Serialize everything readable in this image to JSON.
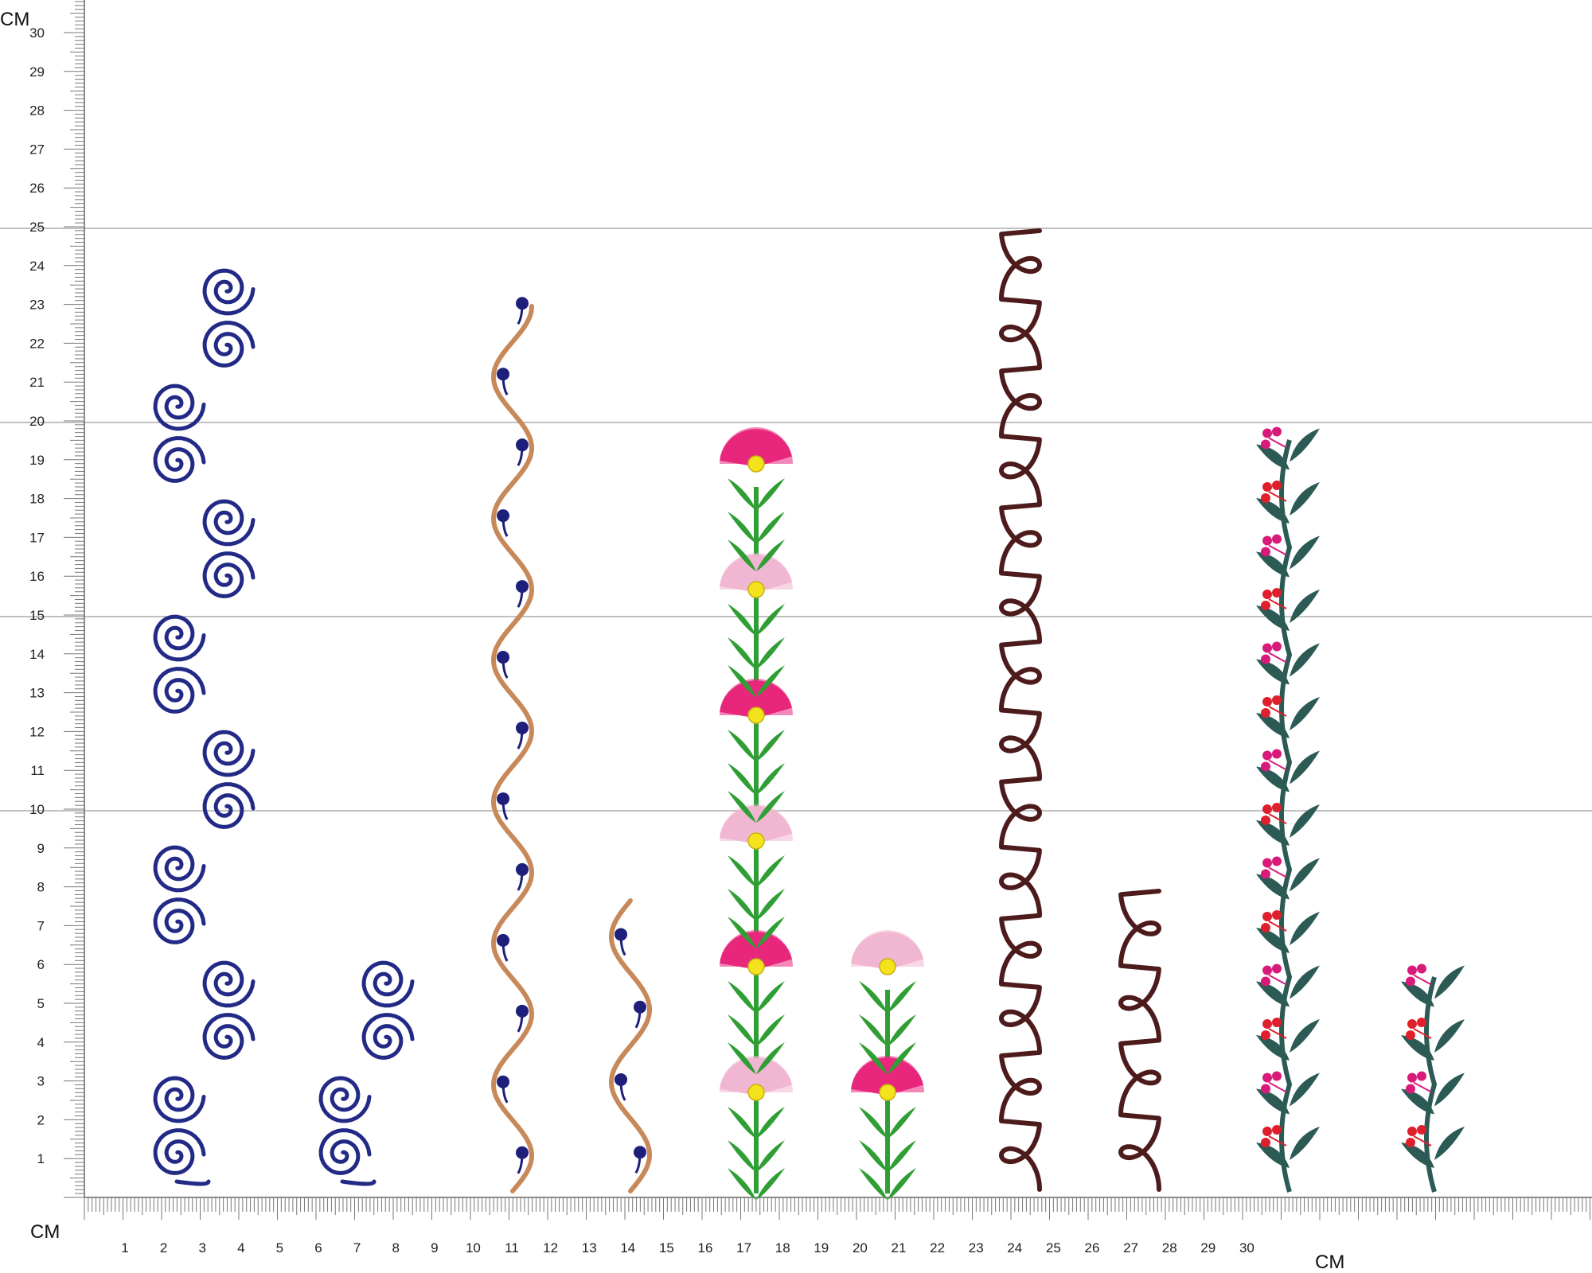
{
  "ruler": {
    "unit_label_top": "CM",
    "unit_label_bottom_left": "CM",
    "unit_label_bottom_right": "CM",
    "vertical_numbers": [
      "1",
      "2",
      "3",
      "4",
      "5",
      "6",
      "7",
      "8",
      "9",
      "10",
      "11",
      "12",
      "13",
      "14",
      "15",
      "16",
      "17",
      "18",
      "19",
      "20",
      "21",
      "22",
      "23",
      "24",
      "25",
      "26",
      "27",
      "28",
      "29",
      "30"
    ],
    "horizontal_numbers": [
      "1",
      "2",
      "3",
      "4",
      "5",
      "6",
      "7",
      "8",
      "9",
      "10",
      "11",
      "12",
      "13",
      "14",
      "15",
      "16",
      "17",
      "18",
      "19",
      "20",
      "21",
      "22",
      "23",
      "24",
      "25",
      "26",
      "27",
      "28",
      "29",
      "30"
    ],
    "guide_lines_at_cm": [
      10,
      15,
      20,
      25
    ]
  },
  "designs": [
    {
      "id": "navy-spiral-tall",
      "kind": "spiral-chain",
      "color": "#232a86"
    },
    {
      "id": "navy-spiral-short",
      "kind": "spiral-chain",
      "color": "#232a86"
    },
    {
      "id": "tan-wave-tall",
      "kind": "wave-vine",
      "color": "#c7895a",
      "bud_color": "#1d1f7a"
    },
    {
      "id": "tan-wave-short",
      "kind": "wave-vine",
      "color": "#c7895a",
      "bud_color": "#1d1f7a"
    },
    {
      "id": "flower-stack-tall",
      "kind": "fan-flower-stack",
      "colors": [
        "#e8267c",
        "#f0b6d2",
        "#2f9e34",
        "#f3e21c"
      ]
    },
    {
      "id": "flower-stack-short",
      "kind": "fan-flower-stack",
      "colors": [
        "#f0b6d2",
        "#e8267c",
        "#2f9e34",
        "#f3e21c"
      ]
    },
    {
      "id": "maroon-loop-tall",
      "kind": "loop-chain",
      "color": "#4d1b1b"
    },
    {
      "id": "maroon-loop-short",
      "kind": "loop-chain",
      "color": "#4d1b1b"
    },
    {
      "id": "teal-berry-vine-tall",
      "kind": "leaf-berry-vine",
      "colors": [
        "#2c5a55",
        "#e01f2c",
        "#d81b7a"
      ]
    },
    {
      "id": "teal-berry-vine-short",
      "kind": "leaf-berry-vine",
      "colors": [
        "#2c5a55",
        "#e01f2c",
        "#d81b7a"
      ]
    }
  ]
}
